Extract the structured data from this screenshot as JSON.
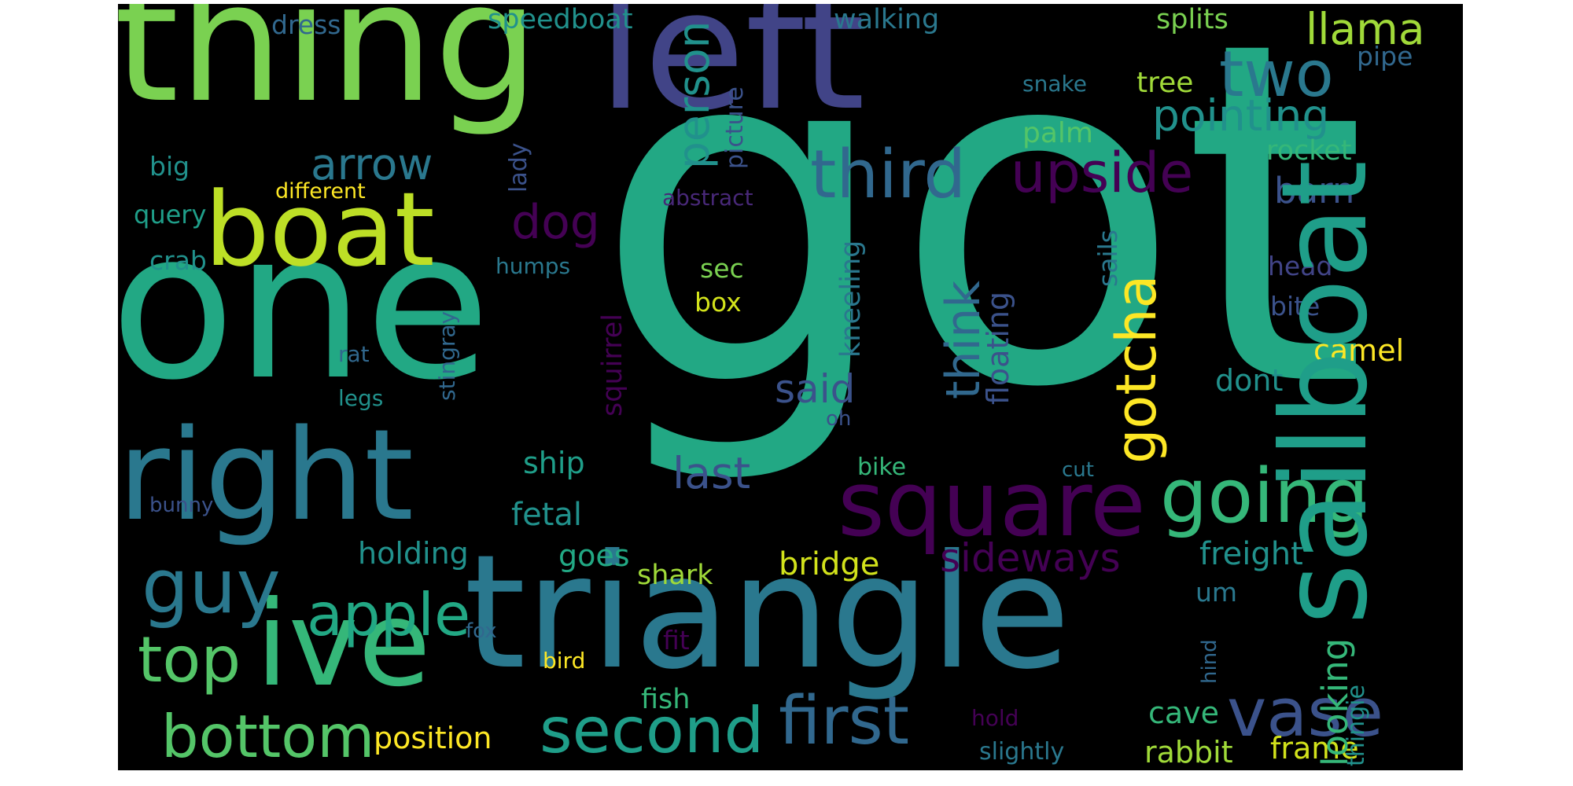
{
  "words": [
    {
      "text": "got",
      "color": "#22a884"
    },
    {
      "text": "one",
      "color": "#22a884"
    },
    {
      "text": "thing",
      "color": "#7ad151"
    },
    {
      "text": "left",
      "color": "#414487"
    },
    {
      "text": "triangle",
      "color": "#2a788e"
    },
    {
      "text": "right",
      "color": "#2a788e"
    },
    {
      "text": "sailboat",
      "color": "#1f9e89"
    },
    {
      "text": "ive",
      "color": "#35b779"
    },
    {
      "text": "boat",
      "color": "#bddf26"
    },
    {
      "text": "square",
      "color": "#440154"
    },
    {
      "text": "going",
      "color": "#35b779"
    },
    {
      "text": "guy",
      "color": "#2a788e"
    },
    {
      "text": "first",
      "color": "#31688e"
    },
    {
      "text": "second",
      "color": "#1f9e89"
    },
    {
      "text": "vase",
      "color": "#3b528b"
    },
    {
      "text": "bottom",
      "color": "#54c568"
    },
    {
      "text": "apple",
      "color": "#22a884"
    },
    {
      "text": "top",
      "color": "#54c568"
    },
    {
      "text": "third",
      "color": "#31688e"
    },
    {
      "text": "two",
      "color": "#2a788e"
    },
    {
      "text": "upside",
      "color": "#440154"
    },
    {
      "text": "gotcha",
      "color": "#fde725"
    },
    {
      "text": "arrow",
      "color": "#2a788e"
    },
    {
      "text": "dog",
      "color": "#440154"
    },
    {
      "text": "pointing",
      "color": "#21918c"
    },
    {
      "text": "llama",
      "color": "#a0da39"
    },
    {
      "text": "sideways",
      "color": "#440154"
    },
    {
      "text": "think",
      "color": "#31688e"
    },
    {
      "text": "last",
      "color": "#3b528b"
    },
    {
      "text": "said",
      "color": "#3b528b"
    },
    {
      "text": "person",
      "color": "#21918c"
    },
    {
      "text": "barn",
      "color": "#3b528b"
    },
    {
      "text": "looking",
      "color": "#35b779"
    },
    {
      "text": "freight",
      "color": "#21918c"
    },
    {
      "text": "holding",
      "color": "#21918c"
    },
    {
      "text": "fetal",
      "color": "#21918c"
    },
    {
      "text": "ship",
      "color": "#1f9e89"
    },
    {
      "text": "bridge",
      "color": "#d2e21b"
    },
    {
      "text": "shark",
      "color": "#a0da39"
    },
    {
      "text": "goes",
      "color": "#22a884"
    },
    {
      "text": "position",
      "color": "#fde725"
    },
    {
      "text": "rabbit",
      "color": "#a0da39"
    },
    {
      "text": "frame",
      "color": "#d2e21b"
    },
    {
      "text": "cave",
      "color": "#35b779"
    },
    {
      "text": "floating",
      "color": "#3b528b"
    },
    {
      "text": "kneeling",
      "color": "#2a788e"
    },
    {
      "text": "squirrel",
      "color": "#440154"
    },
    {
      "text": "sails",
      "color": "#2a788e"
    },
    {
      "text": "camel",
      "color": "#fde725"
    },
    {
      "text": "dont",
      "color": "#21918c"
    },
    {
      "text": "rocket",
      "color": "#35b779"
    },
    {
      "text": "palm",
      "color": "#54c568"
    },
    {
      "text": "tree",
      "color": "#a0da39"
    },
    {
      "text": "splits",
      "color": "#7ad151"
    },
    {
      "text": "walking",
      "color": "#2a788e"
    },
    {
      "text": "speedboat",
      "color": "#21918c"
    },
    {
      "text": "dress",
      "color": "#31688e"
    },
    {
      "text": "pipe",
      "color": "#31688e"
    },
    {
      "text": "snake",
      "color": "#2a788e"
    },
    {
      "text": "picture",
      "color": "#3b528b"
    },
    {
      "text": "big",
      "color": "#21918c"
    },
    {
      "text": "different",
      "color": "#fde725"
    },
    {
      "text": "query",
      "color": "#1f9e89"
    },
    {
      "text": "crab",
      "color": "#21918c"
    },
    {
      "text": "lady",
      "color": "#3b528b"
    },
    {
      "text": "abstract",
      "color": "#482878"
    },
    {
      "text": "humps",
      "color": "#2a788e"
    },
    {
      "text": "sec",
      "color": "#7ad151"
    },
    {
      "text": "box",
      "color": "#d2e21b"
    },
    {
      "text": "rat",
      "color": "#31688e"
    },
    {
      "text": "legs",
      "color": "#21918c"
    },
    {
      "text": "stingray",
      "color": "#31688e"
    },
    {
      "text": "oh",
      "color": "#3b528b"
    },
    {
      "text": "head",
      "color": "#414487"
    },
    {
      "text": "bite",
      "color": "#3b528b"
    },
    {
      "text": "bike",
      "color": "#35b779"
    },
    {
      "text": "cut",
      "color": "#2a788e"
    },
    {
      "text": "bunny",
      "color": "#3b528b"
    },
    {
      "text": "um",
      "color": "#2a788e"
    },
    {
      "text": "hind",
      "color": "#31688e"
    },
    {
      "text": "thingie",
      "color": "#21918c"
    },
    {
      "text": "fox",
      "color": "#31688e"
    },
    {
      "text": "bird",
      "color": "#fde725"
    },
    {
      "text": "fit",
      "color": "#440154"
    },
    {
      "text": "fish",
      "color": "#35b779"
    },
    {
      "text": "hold",
      "color": "#440154"
    },
    {
      "text": "slightly",
      "color": "#2a788e"
    }
  ]
}
